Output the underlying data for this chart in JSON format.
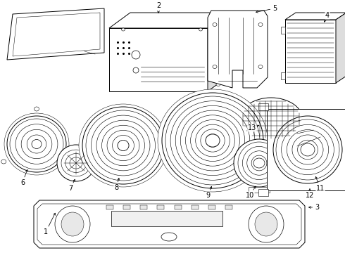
{
  "background_color": "#ffffff",
  "line_color": "#000000",
  "text_color": "#000000",
  "figsize": [
    4.9,
    3.6
  ],
  "dpi": 100
}
